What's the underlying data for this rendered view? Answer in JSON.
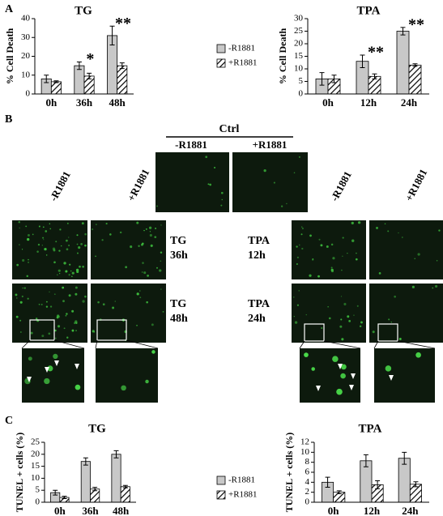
{
  "panels": {
    "a": "A",
    "b": "B",
    "c": "C"
  },
  "chart_data": [
    {
      "type": "bar",
      "title": "TG",
      "y_label": "% Cell Death",
      "categories": [
        "0h",
        "36h",
        "48h"
      ],
      "series": [
        {
          "name": "-R1881",
          "color": "#c8c8c8",
          "values": [
            8,
            15,
            31
          ],
          "errors": [
            2,
            2,
            5
          ]
        },
        {
          "name": "+R1881",
          "color": "#ffffff",
          "pattern": "hatch",
          "values": [
            6.5,
            9.5,
            15
          ],
          "errors": [
            0.5,
            1.5,
            1.5
          ]
        }
      ],
      "annotations": [
        null,
        "*",
        "**"
      ],
      "ylim": [
        0,
        40
      ],
      "yticks": [
        0,
        10,
        20,
        30,
        40
      ]
    },
    {
      "type": "bar",
      "title": "TPA",
      "y_label": "% Cell Death",
      "categories": [
        "0h",
        "12h",
        "24h"
      ],
      "series": [
        {
          "color": "#c8c8c8",
          "values": [
            6,
            13,
            25
          ],
          "errors": [
            2.5,
            2.5,
            1.5
          ]
        },
        {
          "color": "#ffffff",
          "pattern": "hatch",
          "values": [
            6,
            7,
            11.5
          ],
          "errors": [
            1.5,
            1,
            0.5
          ]
        }
      ],
      "annotations": [
        null,
        "**",
        "**"
      ],
      "ylim": [
        0,
        30
      ],
      "yticks": [
        0,
        5,
        10,
        15,
        20,
        25,
        30
      ]
    },
    {
      "type": "bar",
      "title": "TG",
      "y_label": "TUNEL + cells (%)",
      "categories": [
        "0h",
        "36h",
        "48h"
      ],
      "series": [
        {
          "name": "-R1881",
          "color": "#c8c8c8",
          "values": [
            4,
            17,
            20
          ],
          "errors": [
            1,
            1.5,
            1.5
          ]
        },
        {
          "name": "+R1881",
          "color": "#ffffff",
          "pattern": "hatch",
          "values": [
            2,
            5.5,
            6.5
          ],
          "errors": [
            0.5,
            0.7,
            0.5
          ]
        }
      ],
      "ylim": [
        0,
        25
      ],
      "yticks": [
        0,
        5,
        10,
        15,
        20,
        25
      ]
    },
    {
      "type": "bar",
      "title": "TPA",
      "y_label": "TUNEL + cells (%)",
      "categories": [
        "0h",
        "12h",
        "24h"
      ],
      "series": [
        {
          "color": "#c8c8c8",
          "values": [
            4,
            8.3,
            8.8
          ],
          "errors": [
            1,
            1.2,
            1.2
          ]
        },
        {
          "color": "#ffffff",
          "pattern": "hatch",
          "values": [
            2,
            3.5,
            3.6
          ],
          "errors": [
            0.3,
            0.8,
            0.5
          ]
        }
      ],
      "ylim": [
        0,
        12
      ],
      "yticks": [
        0,
        2,
        4,
        6,
        8,
        10,
        12
      ]
    }
  ],
  "microscopy": {
    "ctrl": "Ctrl",
    "ctrl_columns": [
      "-R1881",
      "+R1881"
    ],
    "left_columns": [
      "-R1881",
      "+R1881"
    ],
    "right_columns": [
      "-R1881",
      "+R1881"
    ],
    "left_rows": [
      [
        "TG",
        "36h"
      ],
      [
        "TG",
        "48h"
      ]
    ],
    "right_rows": [
      [
        "TPA",
        "12h"
      ],
      [
        "TPA",
        "24h"
      ]
    ]
  }
}
